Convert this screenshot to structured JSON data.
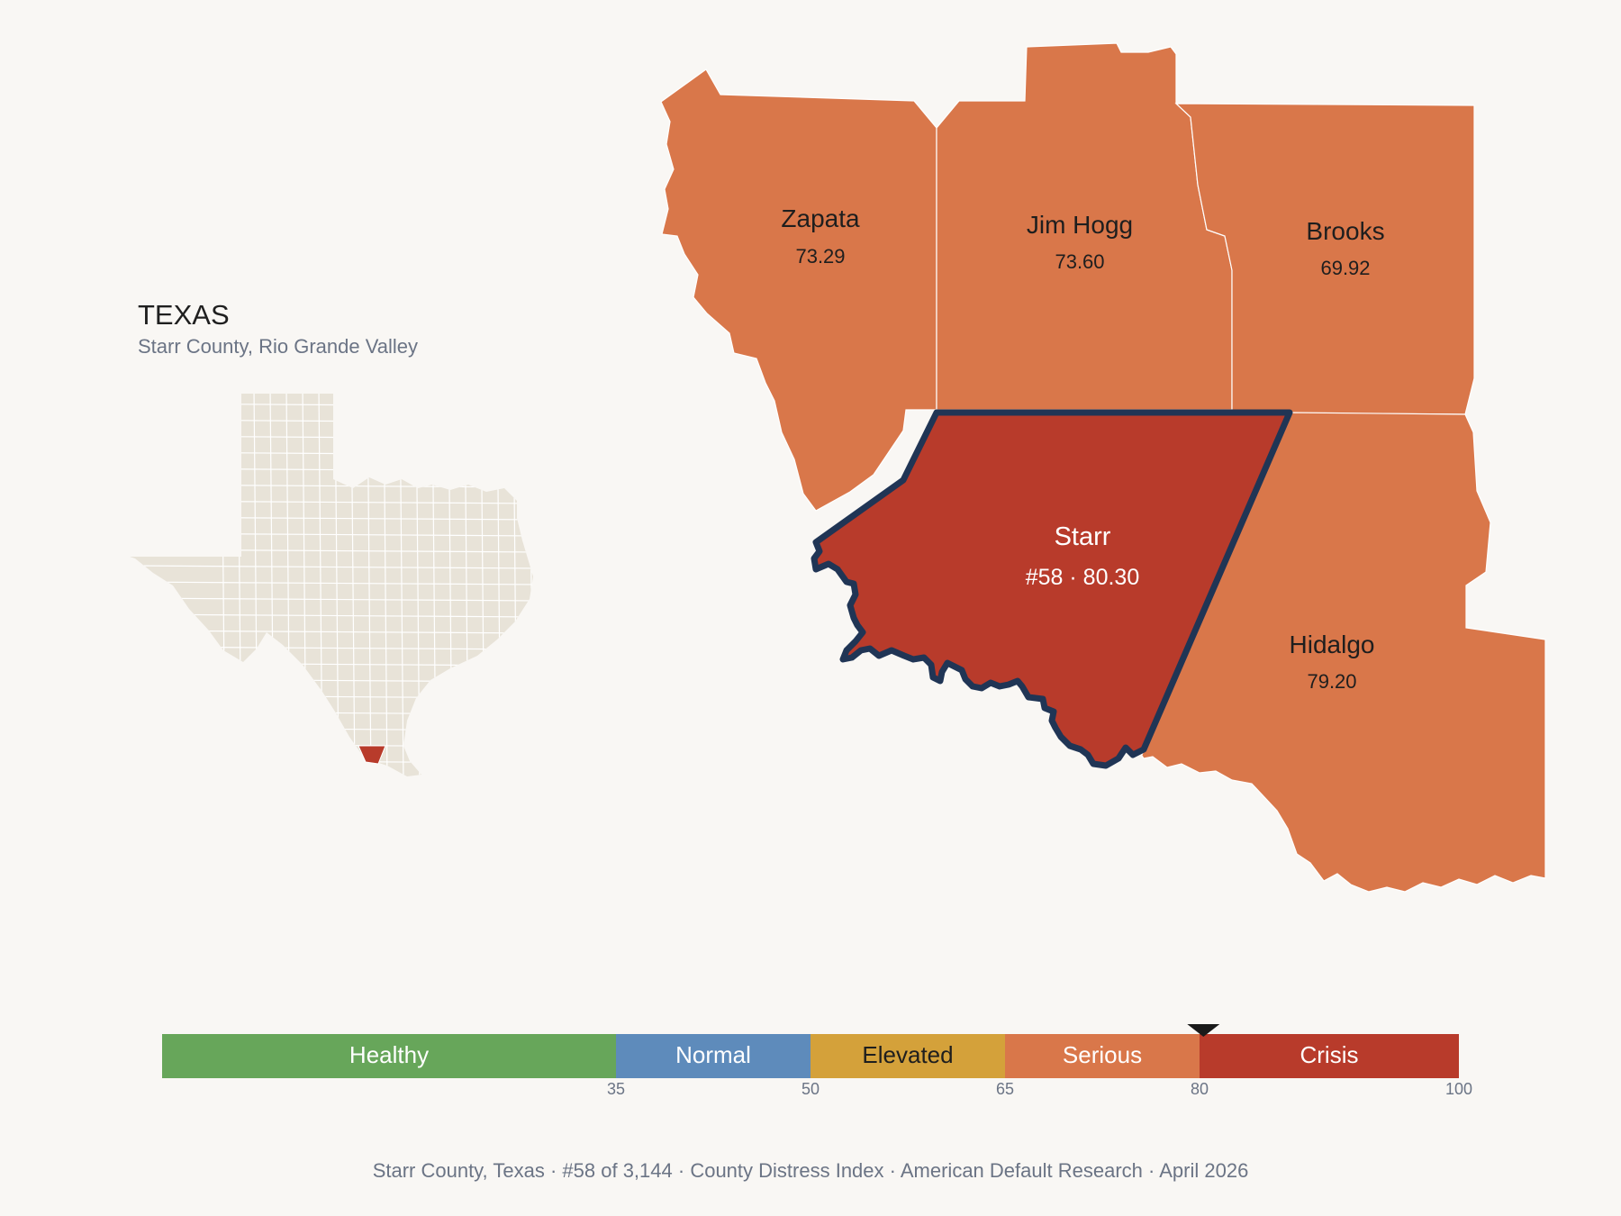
{
  "locator": {
    "state_title": "TEXAS",
    "subtitle": "Starr County, Rio Grande Valley"
  },
  "counties": {
    "zapata": {
      "name": "Zapata",
      "value": "73.29"
    },
    "jim_hogg": {
      "name": "Jim Hogg",
      "value": "73.60"
    },
    "brooks": {
      "name": "Brooks",
      "value": "69.92"
    },
    "starr": {
      "name": "Starr",
      "value": "#58 · 80.30"
    },
    "hidalgo": {
      "name": "Hidalgo",
      "value": "79.20"
    }
  },
  "scale": {
    "bands": [
      {
        "label": "Healthy",
        "color": "#67a65a"
      },
      {
        "label": "Normal",
        "color": "#5e8bbb"
      },
      {
        "label": "Elevated",
        "color": "#d4a13a"
      },
      {
        "label": "Serious",
        "color": "#d9774a"
      },
      {
        "label": "Crisis",
        "color": "#b83b2b"
      }
    ],
    "ticks": [
      "35",
      "50",
      "65",
      "80",
      "100"
    ],
    "marker_value": 80.3
  },
  "footer": {
    "county": "Starr County, Texas",
    "rank": "#58 of 3,144",
    "index": "County Distress Index",
    "publisher": "American Default Research",
    "date": "April 2026"
  },
  "colors": {
    "serious": "#d9774a",
    "crisis": "#b83b2b",
    "highlight_border": "#203555",
    "state_fill": "#e8e3d8"
  }
}
